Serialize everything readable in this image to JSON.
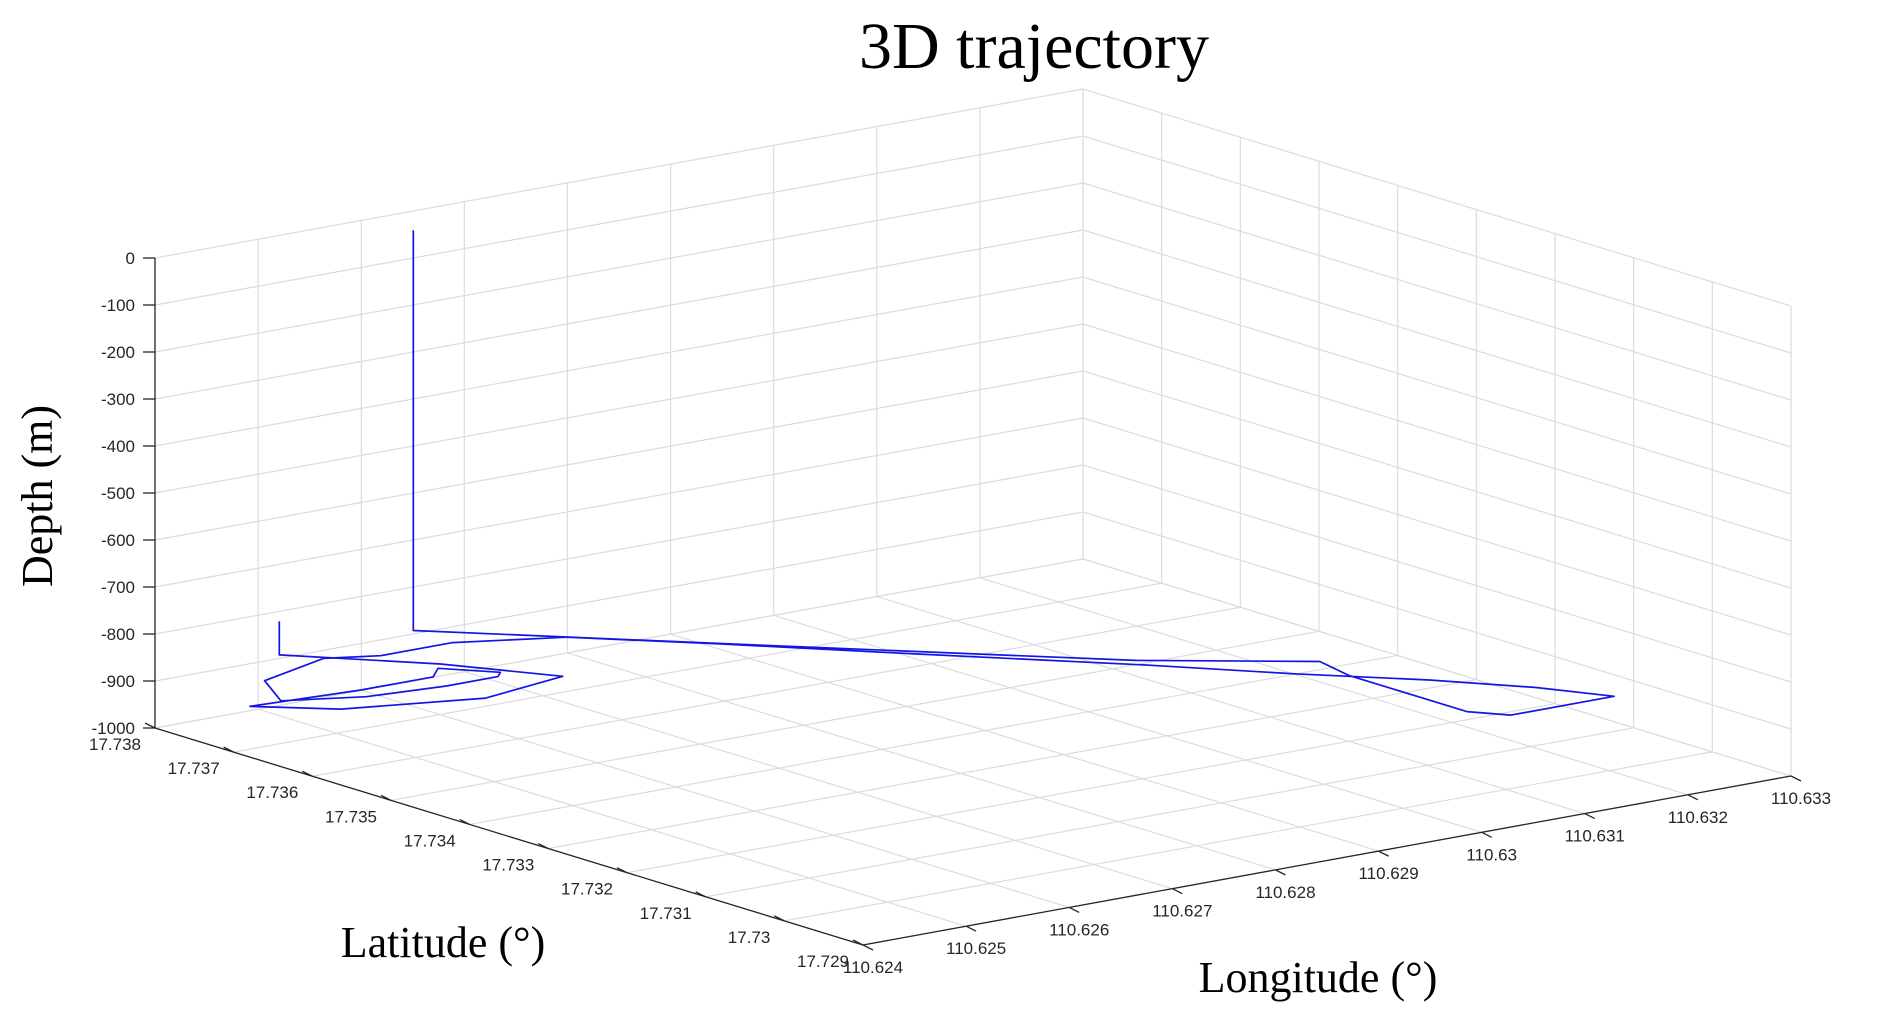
{
  "chart_data": {
    "type": "line3d",
    "title": "3D trajectory",
    "xlabel": "Longitude (°)",
    "ylabel": "Latitude (°)",
    "zlabel": "Depth (m)",
    "xlim": [
      110.624,
      110.633
    ],
    "ylim": [
      17.729,
      17.738
    ],
    "zlim": [
      -1000,
      0
    ],
    "xticks": [
      110.624,
      110.625,
      110.626,
      110.627,
      110.628,
      110.629,
      110.63,
      110.631,
      110.632,
      110.633
    ],
    "xtick_labels": [
      "110.624",
      "110.625",
      "110.626",
      "110.627",
      "110.628",
      "110.629",
      "110.63",
      "110.631",
      "110.632",
      "110.633"
    ],
    "yticks": [
      17.738,
      17.737,
      17.736,
      17.735,
      17.734,
      17.733,
      17.732,
      17.731,
      17.73,
      17.729
    ],
    "ytick_labels": [
      "17.738",
      "17.737",
      "17.736",
      "17.735",
      "17.734",
      "17.733",
      "17.732",
      "17.731",
      "17.73",
      "17.729"
    ],
    "zticks": [
      0,
      -100,
      -200,
      -300,
      -400,
      -500,
      -600,
      -700,
      -800,
      -900,
      -1000
    ],
    "ztick_labels": [
      "0",
      "-100",
      "-200",
      "-300",
      "-400",
      "-500",
      "-600",
      "-700",
      "-800",
      "-900",
      "-1000"
    ],
    "grid": true,
    "series": [
      {
        "color": "#1414e6",
        "points": [
          [
            110.6249,
            17.7376,
            -790
          ],
          [
            110.6249,
            17.7376,
            -860
          ],
          [
            110.6257,
            17.7366,
            -860
          ],
          [
            110.6262,
            17.7357,
            -860
          ],
          [
            110.6253,
            17.7355,
            -860
          ],
          [
            110.6242,
            17.7359,
            -860
          ],
          [
            110.6237,
            17.7364,
            -860
          ],
          [
            110.6247,
            17.7363,
            -860
          ],
          [
            110.6254,
            17.7363,
            -860
          ],
          [
            110.6256,
            17.7365,
            -860
          ],
          [
            110.6259,
            17.7361,
            -860
          ],
          [
            110.6258,
            17.736,
            -860
          ],
          [
            110.6253,
            17.736,
            -860
          ],
          [
            110.6246,
            17.7361,
            -860
          ],
          [
            110.624,
            17.7364,
            -860
          ],
          [
            110.6243,
            17.737,
            -860
          ],
          [
            110.6251,
            17.7373,
            -860
          ],
          [
            110.6255,
            17.7371,
            -860
          ],
          [
            110.6262,
            17.7371,
            -860
          ],
          [
            110.627,
            17.7367,
            -860
          ],
          [
            110.6278,
            17.7358,
            -860
          ],
          [
            110.6288,
            17.7346,
            -860
          ],
          [
            110.63,
            17.7332,
            -860
          ],
          [
            110.6307,
            17.7323,
            -860
          ],
          [
            110.6314,
            17.7315,
            -860
          ],
          [
            110.6319,
            17.7308,
            -860
          ],
          [
            110.6322,
            17.7302,
            -860
          ],
          [
            110.6312,
            17.7302,
            -860
          ],
          [
            110.631,
            17.7305,
            -860
          ],
          [
            110.631,
            17.7312,
            -860
          ],
          [
            110.631,
            17.732,
            -860
          ],
          [
            110.6311,
            17.7325,
            -860
          ],
          [
            110.63,
            17.7334,
            -860
          ],
          [
            110.628,
            17.7356,
            -860
          ],
          [
            110.6262,
            17.7376,
            -860
          ],
          [
            110.6262,
            17.7376,
            -10
          ]
        ]
      }
    ]
  }
}
